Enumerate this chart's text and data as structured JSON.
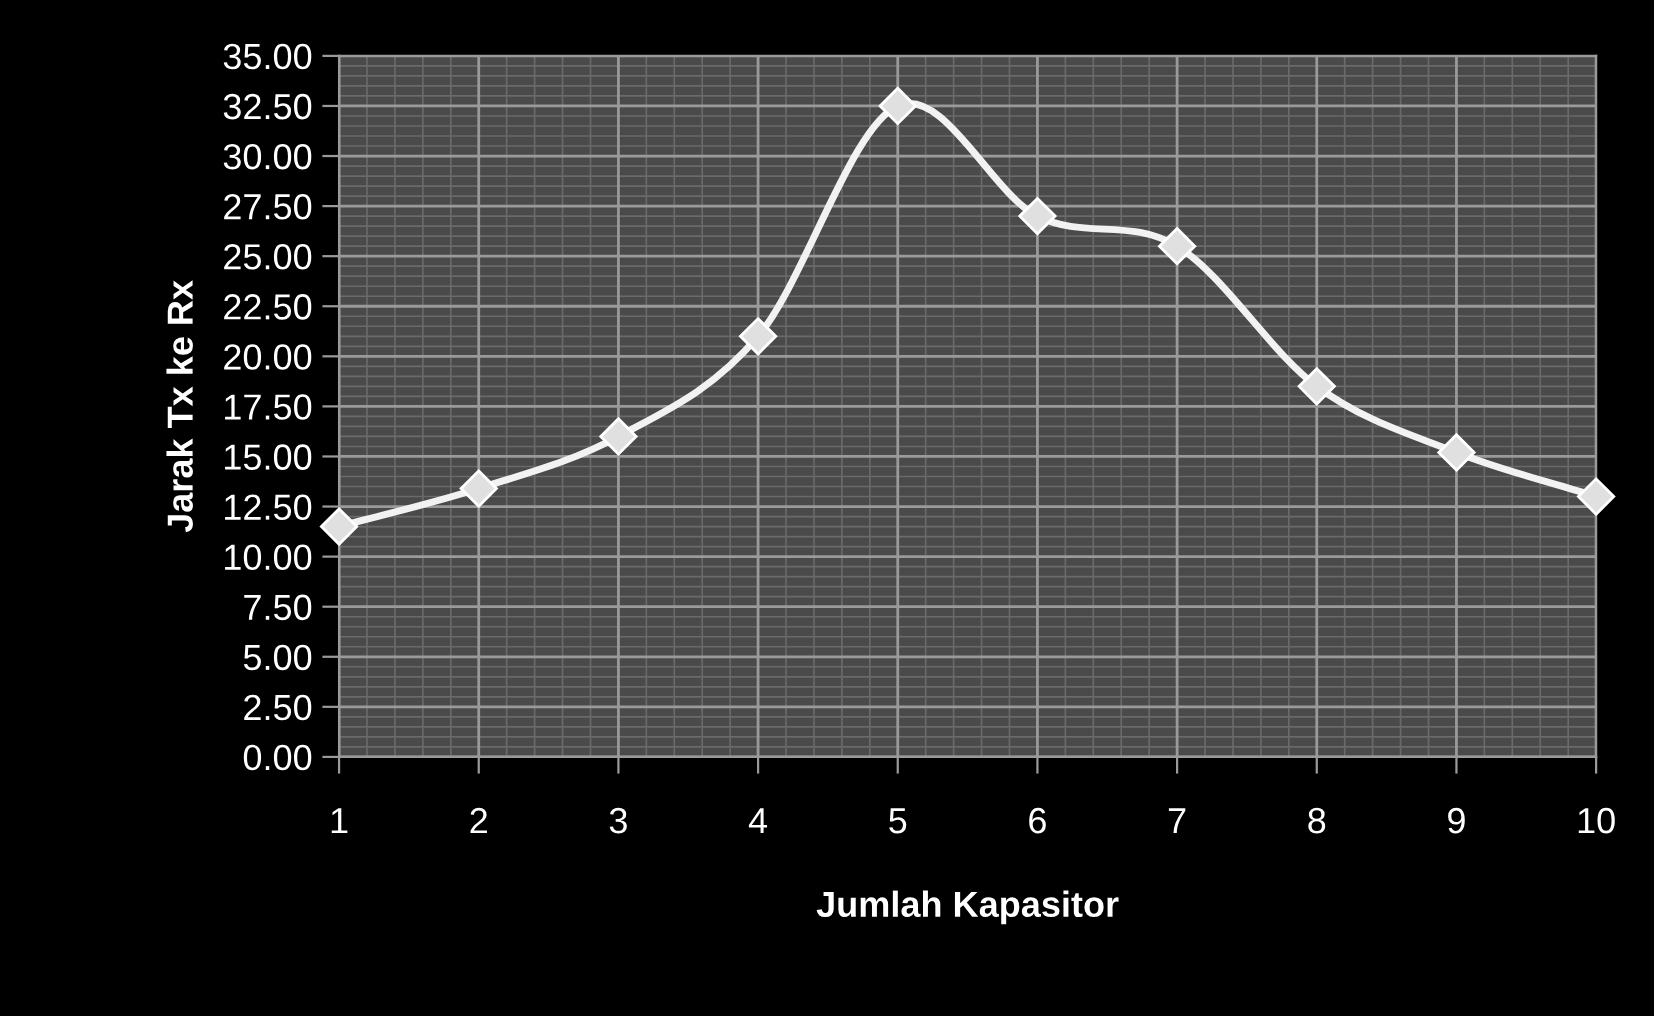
{
  "chart_data": {
    "type": "line",
    "xlabel": "Jumlah Kapasitor",
    "ylabel": "Jarak Tx ke Rx",
    "x": [
      1,
      2,
      3,
      4,
      5,
      6,
      7,
      8,
      9,
      10
    ],
    "series": [
      {
        "color": "#f2f2f2",
        "values": [
          11.5,
          13.4,
          16.0,
          21.0,
          32.5,
          27.0,
          25.5,
          18.5,
          15.2,
          13.0
        ]
      }
    ],
    "xlim": [
      1,
      10
    ],
    "xticks": [
      1,
      2,
      3,
      4,
      5,
      6,
      7,
      8,
      9,
      10
    ],
    "ylim": [
      0,
      35
    ],
    "yticks": [
      {
        "value": 0,
        "label": "0.00"
      },
      {
        "value": 2.5,
        "label": "2.50"
      },
      {
        "value": 5,
        "label": "5.00"
      },
      {
        "value": 7.5,
        "label": "7.50"
      },
      {
        "value": 10,
        "label": "10.00"
      },
      {
        "value": 12.5,
        "label": "12.50"
      },
      {
        "value": 15,
        "label": "15.00"
      },
      {
        "value": 17.5,
        "label": "17.50"
      },
      {
        "value": 20,
        "label": "20.00"
      },
      {
        "value": 22.5,
        "label": "22.50"
      },
      {
        "value": 25,
        "label": "25.00"
      },
      {
        "value": 27.5,
        "label": "27.50"
      },
      {
        "value": 30,
        "label": "30.00"
      },
      {
        "value": 32.5,
        "label": "32.50"
      },
      {
        "value": 35,
        "label": "35.00"
      }
    ],
    "grid": true,
    "marker": "diamond",
    "line_style": "solid",
    "legend": false
  }
}
